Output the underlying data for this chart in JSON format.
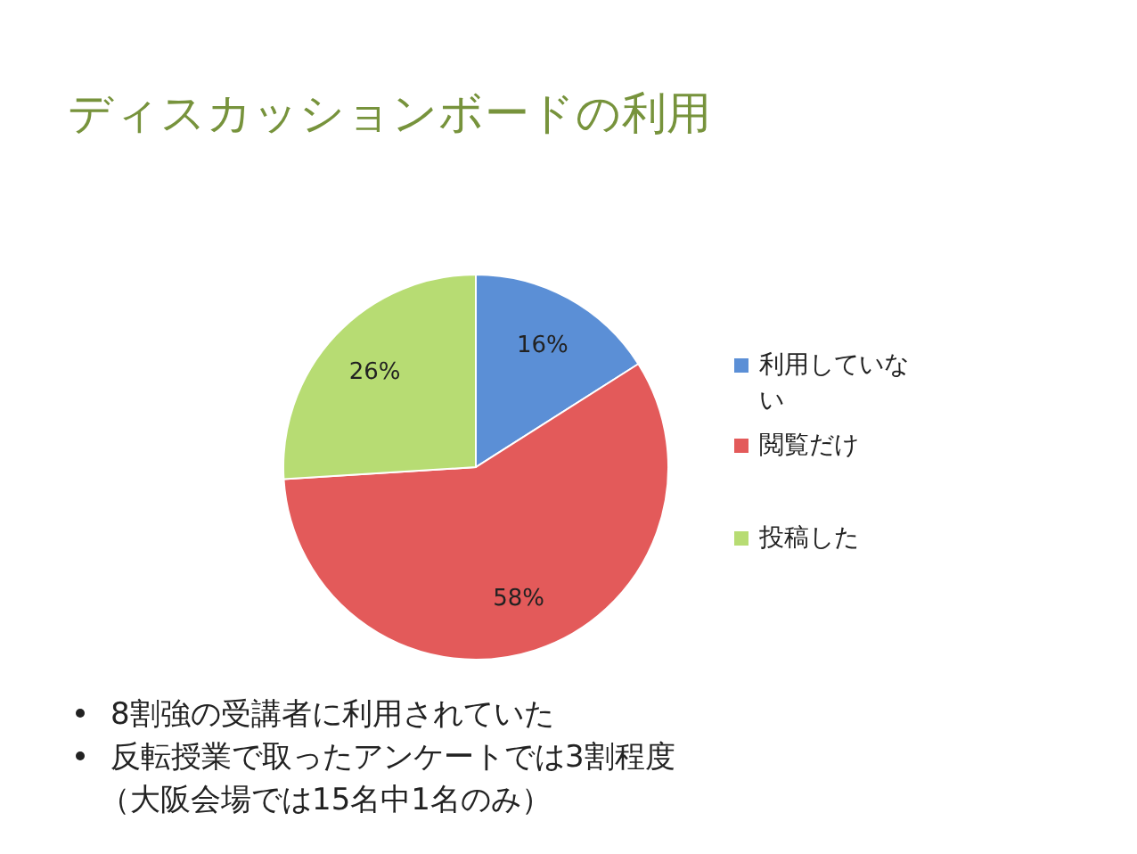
{
  "chart_data": {
    "type": "pie",
    "title": "ディスカッションボードの利用",
    "categories": [
      "利用していない",
      "閲覧だけ",
      "投稿した"
    ],
    "values": [
      16,
      58,
      26
    ],
    "value_labels": [
      "16%",
      "58%",
      "26%"
    ],
    "colors": [
      "#5b8fd6",
      "#e35a5a",
      "#b7dc73"
    ],
    "legend": "right",
    "annotations": [
      "8割強の受講者に利用されていた",
      "反転授業で取ったアンケートでは3割程度",
      "（大阪会場では15名中1名のみ）"
    ]
  }
}
